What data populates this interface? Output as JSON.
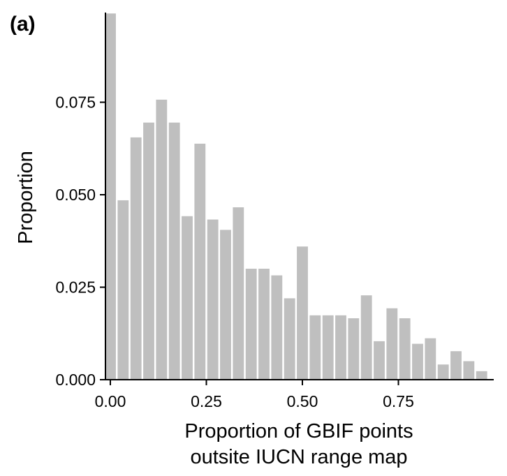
{
  "panel_label": "(a)",
  "chart_data": {
    "type": "bar",
    "xlabel_lines": [
      "Proportion of GBIF points",
      "outsite IUCN range map"
    ],
    "ylabel": "Proportion",
    "xlim": [
      0,
      1
    ],
    "ylim": [
      0,
      0.1
    ],
    "x_ticks": [
      0.0,
      0.25,
      0.5,
      0.75
    ],
    "x_tick_labels": [
      "0.00",
      "0.25",
      "0.50",
      "0.75"
    ],
    "y_ticks": [
      0.0,
      0.025,
      0.05,
      0.075
    ],
    "y_tick_labels": [
      "0.000",
      "0.025",
      "0.050",
      "0.075"
    ],
    "bin_width": 0.0333,
    "bin_centers": [
      0.0,
      0.0333,
      0.0667,
      0.1,
      0.1333,
      0.1667,
      0.2,
      0.2333,
      0.2667,
      0.3,
      0.3333,
      0.3667,
      0.4,
      0.4333,
      0.4667,
      0.5,
      0.5333,
      0.5667,
      0.6,
      0.6333,
      0.6667,
      0.7,
      0.7333,
      0.7667,
      0.8,
      0.8333,
      0.8667,
      0.9,
      0.9333,
      0.9667
    ],
    "values": [
      0.099,
      0.0485,
      0.0655,
      0.0695,
      0.0757,
      0.0695,
      0.0442,
      0.0638,
      0.0433,
      0.0405,
      0.0466,
      0.03,
      0.03,
      0.0282,
      0.022,
      0.036,
      0.0174,
      0.0174,
      0.0174,
      0.0166,
      0.0228,
      0.0104,
      0.0193,
      0.0166,
      0.0097,
      0.0112,
      0.0041,
      0.0077,
      0.005,
      0.0023
    ],
    "bar_color": "#bfbfbf",
    "grid": false
  }
}
